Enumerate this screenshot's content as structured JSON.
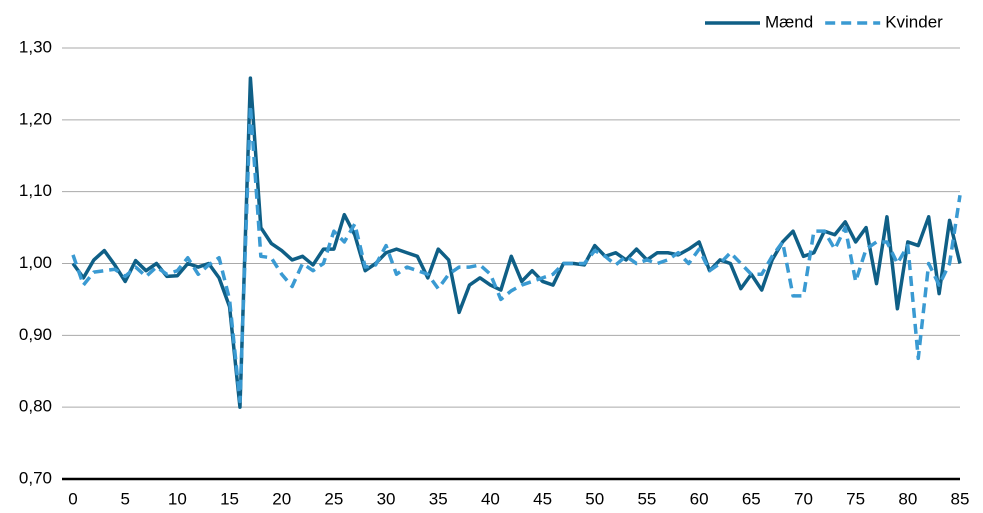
{
  "chart_data": {
    "type": "line",
    "x": [
      0,
      1,
      2,
      3,
      4,
      5,
      6,
      7,
      8,
      9,
      10,
      11,
      12,
      13,
      14,
      15,
      16,
      17,
      18,
      19,
      20,
      21,
      22,
      23,
      24,
      25,
      26,
      27,
      28,
      29,
      30,
      31,
      32,
      33,
      34,
      35,
      36,
      37,
      38,
      39,
      40,
      41,
      42,
      43,
      44,
      45,
      46,
      47,
      48,
      49,
      50,
      51,
      52,
      53,
      54,
      55,
      56,
      57,
      58,
      59,
      60,
      61,
      62,
      63,
      64,
      65,
      66,
      67,
      68,
      69,
      70,
      71,
      72,
      73,
      74,
      75,
      76,
      77,
      78,
      79,
      80,
      81,
      82,
      83,
      84,
      85
    ],
    "series": [
      {
        "name": "Mænd",
        "color": "#0f5f86",
        "dash": false,
        "values": [
          1.0,
          0.98,
          1.005,
          1.018,
          0.998,
          0.975,
          1.004,
          0.99,
          1.0,
          0.982,
          0.983,
          1.0,
          0.995,
          1.0,
          0.98,
          0.94,
          0.8,
          1.258,
          1.05,
          1.028,
          1.018,
          1.005,
          1.01,
          0.998,
          1.02,
          1.02,
          1.068,
          1.04,
          0.99,
          1.0,
          1.015,
          1.02,
          1.015,
          1.01,
          0.98,
          1.02,
          1.005,
          0.932,
          0.97,
          0.98,
          0.97,
          0.963,
          1.01,
          0.975,
          0.99,
          0.975,
          0.97,
          1.0,
          1.0,
          0.998,
          1.025,
          1.01,
          1.015,
          1.005,
          1.02,
          1.005,
          1.015,
          1.015,
          1.012,
          1.02,
          1.03,
          0.99,
          1.005,
          1.0,
          0.965,
          0.985,
          0.963,
          1.005,
          1.03,
          1.045,
          1.01,
          1.015,
          1.045,
          1.04,
          1.058,
          1.03,
          1.05,
          0.972,
          1.065,
          0.937,
          1.03,
          1.025,
          1.065,
          0.958,
          1.06,
          1.0
        ]
      },
      {
        "name": "Kvinder",
        "color": "#3a9ad2",
        "dash": true,
        "values": [
          1.012,
          0.97,
          0.988,
          0.99,
          0.992,
          0.982,
          0.995,
          0.982,
          0.995,
          0.985,
          0.99,
          1.008,
          0.985,
          0.998,
          1.008,
          0.95,
          0.808,
          1.22,
          1.01,
          1.008,
          0.985,
          0.968,
          1.0,
          0.99,
          1.0,
          1.045,
          1.03,
          1.055,
          0.995,
          0.998,
          1.025,
          0.985,
          0.995,
          0.99,
          0.985,
          0.965,
          0.985,
          0.995,
          0.995,
          0.998,
          0.985,
          0.95,
          0.962,
          0.97,
          0.975,
          0.98,
          0.985,
          1.0,
          1.0,
          1.0,
          1.018,
          1.01,
          0.998,
          1.01,
          1.0,
          1.005,
          1.0,
          1.005,
          1.015,
          1.0,
          1.02,
          0.99,
          1.0,
          1.015,
          1.0,
          0.985,
          0.985,
          1.01,
          1.03,
          0.955,
          0.955,
          1.045,
          1.045,
          1.02,
          1.05,
          0.975,
          1.02,
          1.03,
          1.03,
          1.0,
          1.025,
          0.868,
          1.0,
          0.97,
          1.0,
          1.095
        ]
      }
    ],
    "xlim": [
      0,
      85
    ],
    "xticks": [
      0,
      5,
      10,
      15,
      20,
      25,
      30,
      35,
      40,
      45,
      50,
      55,
      60,
      65,
      70,
      75,
      80,
      85
    ],
    "ylim": [
      0.7,
      1.3
    ],
    "yticks": [
      {
        "value": 0.7,
        "label": "0,70"
      },
      {
        "value": 0.8,
        "label": "0,80"
      },
      {
        "value": 0.9,
        "label": "0,90"
      },
      {
        "value": 1.0,
        "label": "1,00"
      },
      {
        "value": 1.1,
        "label": "1,10"
      },
      {
        "value": 1.2,
        "label": "1,20"
      },
      {
        "value": 1.3,
        "label": "1,30"
      }
    ],
    "grid": true,
    "legend": "top-right"
  }
}
